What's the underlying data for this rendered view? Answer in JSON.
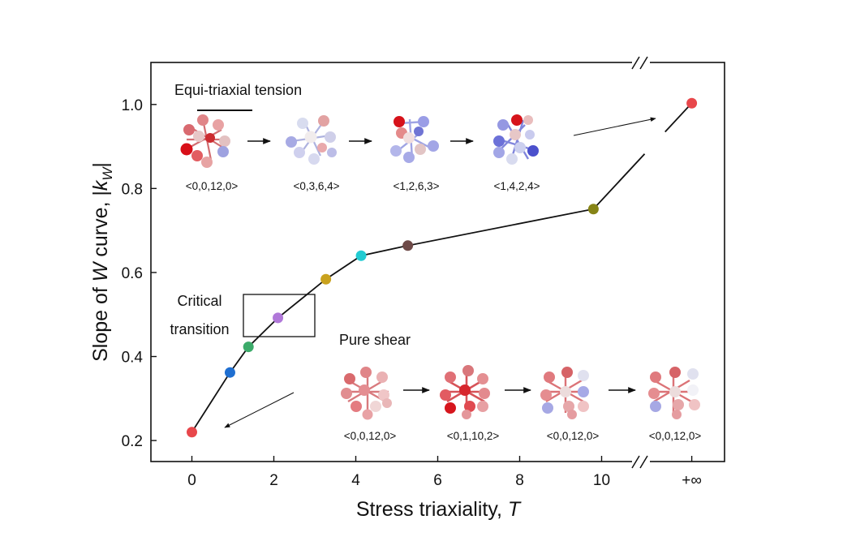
{
  "chart_data": {
    "type": "line",
    "xlabel_text": "Stress triaxiality, ",
    "xlabel_var": "T",
    "ylabel_text": "Slope of ",
    "ylabel_var": "W",
    "ylabel_tail": " curve, |",
    "ylabel_k": "k",
    "ylabel_sub": "W",
    "ylabel_end": "|",
    "xlim": [
      -1,
      13
    ],
    "ylim": [
      0.15,
      1.1
    ],
    "x_break_after": 11,
    "x_ticks": [
      {
        "value": 0,
        "label": "0"
      },
      {
        "value": 2,
        "label": "2"
      },
      {
        "value": 4,
        "label": "4"
      },
      {
        "value": 6,
        "label": "6"
      },
      {
        "value": 8,
        "label": "8"
      },
      {
        "value": 10,
        "label": "10"
      },
      {
        "value": 12.2,
        "label": "+∞"
      }
    ],
    "y_ticks": [
      {
        "value": 0.2,
        "label": "0.2"
      },
      {
        "value": 0.4,
        "label": "0.4"
      },
      {
        "value": 0.6,
        "label": "0.6"
      },
      {
        "value": 0.8,
        "label": "0.8"
      },
      {
        "value": 1.0,
        "label": "1.0"
      }
    ],
    "points": [
      {
        "x": 0.0,
        "y": 0.22,
        "color": "#e8474b"
      },
      {
        "x": 0.93,
        "y": 0.362,
        "color": "#1f6fd1"
      },
      {
        "x": 1.38,
        "y": 0.423,
        "color": "#3cab6a"
      },
      {
        "x": 2.1,
        "y": 0.492,
        "color": "#b078d9"
      },
      {
        "x": 3.27,
        "y": 0.584,
        "color": "#c9a21e"
      },
      {
        "x": 4.13,
        "y": 0.64,
        "color": "#22cbd2"
      },
      {
        "x": 5.27,
        "y": 0.664,
        "color": "#6e4a48"
      },
      {
        "x": 9.8,
        "y": 0.751,
        "color": "#868416"
      },
      {
        "x": 12.2,
        "y": 1.003,
        "color": "#e8474b"
      }
    ]
  },
  "annotations": {
    "equi_triaxial": "Equi-triaxial tension",
    "pure_shear": "Pure shear",
    "critical_line1": "Critical",
    "critical_line2": "transition"
  },
  "voronoi_top": [
    "<0,0,12,0>",
    "<0,3,6,4>",
    "<1,2,6,3>",
    "<1,4,2,4>"
  ],
  "voronoi_bottom": [
    "<0,0,12,0>",
    "<0,1,10,2>",
    "<0,0,12,0>",
    "<0,0,12,0>"
  ]
}
